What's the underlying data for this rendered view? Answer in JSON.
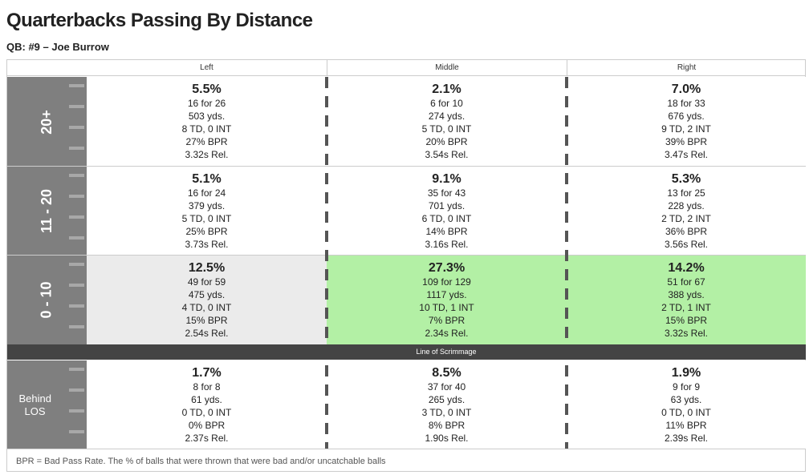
{
  "title": "Quarterbacks Passing By Distance",
  "subtitle": "QB: #9 – Joe Burrow",
  "columns": [
    "Left",
    "Middle",
    "Right"
  ],
  "rows": [
    {
      "label": "20+",
      "cells": [
        {
          "pct": "5.5%",
          "comp": "16 for 26",
          "yds": "503 yds.",
          "tdint": "8 TD, 0 INT",
          "bpr": "27% BPR",
          "rel": "3.32s Rel.",
          "bg": "#ffffff"
        },
        {
          "pct": "2.1%",
          "comp": "6 for 10",
          "yds": "274 yds.",
          "tdint": "5 TD, 0 INT",
          "bpr": "20% BPR",
          "rel": "3.54s Rel.",
          "bg": "#ffffff"
        },
        {
          "pct": "7.0%",
          "comp": "18 for 33",
          "yds": "676 yds.",
          "tdint": "9 TD, 2 INT",
          "bpr": "39% BPR",
          "rel": "3.47s Rel.",
          "bg": "#ffffff"
        }
      ]
    },
    {
      "label": "11 - 20",
      "cells": [
        {
          "pct": "5.1%",
          "comp": "16 for 24",
          "yds": "379 yds.",
          "tdint": "5 TD, 0 INT",
          "bpr": "25% BPR",
          "rel": "3.73s Rel.",
          "bg": "#ffffff"
        },
        {
          "pct": "9.1%",
          "comp": "35 for 43",
          "yds": "701 yds.",
          "tdint": "6 TD, 0 INT",
          "bpr": "14% BPR",
          "rel": "3.16s Rel.",
          "bg": "#ffffff"
        },
        {
          "pct": "5.3%",
          "comp": "13 for 25",
          "yds": "228 yds.",
          "tdint": "2 TD, 2 INT",
          "bpr": "36% BPR",
          "rel": "3.56s Rel.",
          "bg": "#ffffff"
        }
      ]
    },
    {
      "label": "0 - 10",
      "cells": [
        {
          "pct": "12.5%",
          "comp": "49 for 59",
          "yds": "475 yds.",
          "tdint": "4 TD, 0 INT",
          "bpr": "15% BPR",
          "rel": "2.54s Rel.",
          "bg": "#ebebeb"
        },
        {
          "pct": "27.3%",
          "comp": "109 for 129",
          "yds": "1117 yds.",
          "tdint": "10 TD, 1 INT",
          "bpr": "7% BPR",
          "rel": "2.34s Rel.",
          "bg": "#b3f0a5"
        },
        {
          "pct": "14.2%",
          "comp": "51 for 67",
          "yds": "388 yds.",
          "tdint": "2 TD, 1 INT",
          "bpr": "15% BPR",
          "rel": "3.32s Rel.",
          "bg": "#b3f0a5"
        }
      ]
    },
    {
      "label": "Behind LOS",
      "cells": [
        {
          "pct": "1.7%",
          "comp": "8 for 8",
          "yds": "61 yds.",
          "tdint": "0 TD, 0 INT",
          "bpr": "0% BPR",
          "rel": "2.37s Rel.",
          "bg": "#ffffff"
        },
        {
          "pct": "8.5%",
          "comp": "37 for 40",
          "yds": "265 yds.",
          "tdint": "3 TD, 0 INT",
          "bpr": "8% BPR",
          "rel": "1.90s Rel.",
          "bg": "#ffffff"
        },
        {
          "pct": "1.9%",
          "comp": "9 for 9",
          "yds": "63 yds.",
          "tdint": "0 TD, 0 INT",
          "bpr": "11% BPR",
          "rel": "2.39s Rel.",
          "bg": "#ffffff"
        }
      ]
    }
  ],
  "line_of_scrimmage": "Line of Scrimmage",
  "footer": "BPR = Bad Pass Rate. The % of balls that were thrown that were bad and/or uncatchable balls",
  "colors": {
    "side": "#7f7f7f",
    "los": "#444444",
    "highlight": "#b3f0a5",
    "neutral": "#ebebeb"
  }
}
